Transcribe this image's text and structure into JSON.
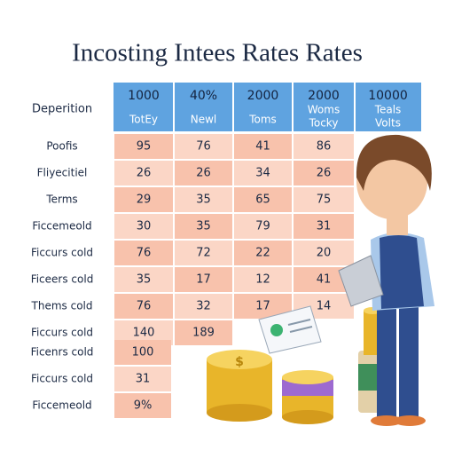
{
  "title": "Incosting Intees Rates Rates",
  "table": {
    "corner": "Deperition",
    "columns": [
      {
        "lines": [
          "1000",
          "TotEy"
        ]
      },
      {
        "lines": [
          "40%",
          "Newl"
        ]
      },
      {
        "lines": [
          "2000",
          "Toms"
        ]
      },
      {
        "lines": [
          "2000",
          "Woms",
          "Tocky"
        ]
      },
      {
        "lines": [
          "10000",
          "Teals",
          "Volts"
        ]
      }
    ],
    "rows": [
      {
        "label": "Poofis",
        "cells": [
          "95",
          "76",
          "41",
          "86"
        ]
      },
      {
        "label": "Fliyecitiel",
        "cells": [
          "26",
          "26",
          "34",
          "26"
        ]
      },
      {
        "label": "Terms",
        "cells": [
          "29",
          "35",
          "65",
          "75"
        ]
      },
      {
        "label": "Ficcemeold",
        "cells": [
          "30",
          "35",
          "79",
          "31"
        ]
      },
      {
        "label": "Ficcurs cold",
        "cells": [
          "76",
          "72",
          "22",
          "20"
        ]
      },
      {
        "label": "Ficeers cold",
        "cells": [
          "35",
          "17",
          "12",
          "41"
        ]
      },
      {
        "label": "Thems cold",
        "cells": [
          "76",
          "32",
          "17",
          "14"
        ]
      },
      {
        "label": "Ficcurs cold",
        "cells": [
          "140",
          "189"
        ]
      }
    ]
  },
  "summary": {
    "rows": [
      {
        "label": "Ficenrs cold",
        "value": "100"
      },
      {
        "label": "Ficcurs cold",
        "value": "31"
      },
      {
        "label": "Ficcemeold",
        "value": "9%"
      }
    ]
  }
}
